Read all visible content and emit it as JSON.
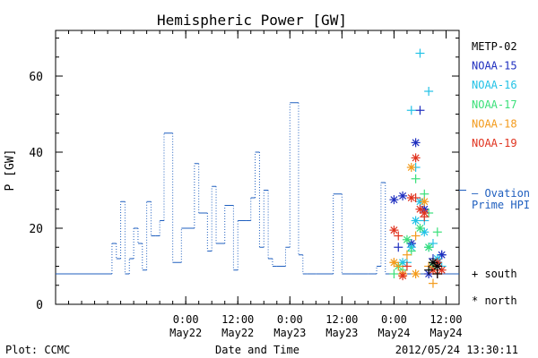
{
  "chart_data": {
    "type": "line",
    "title": "Hemispheric Power [GW]",
    "ylabel": "P [GW]",
    "xlabel": "Date and Time",
    "ylim": [
      0,
      72
    ],
    "xlim": [
      "2012-05-20 18:00",
      "2012-05-24 15:00"
    ],
    "grid": false,
    "y_ticks": [
      0,
      20,
      40,
      60
    ],
    "x_ticks": [
      {
        "time": "2012-05-22 00:00",
        "label": [
          "0:00",
          "May22"
        ]
      },
      {
        "time": "2012-05-22 12:00",
        "label": [
          "12:00",
          "May22"
        ]
      },
      {
        "time": "2012-05-23 00:00",
        "label": [
          "0:00",
          "May23"
        ]
      },
      {
        "time": "2012-05-23 12:00",
        "label": [
          "12:00",
          "May23"
        ]
      },
      {
        "time": "2012-05-24 00:00",
        "label": [
          "0:00",
          "May24"
        ]
      },
      {
        "time": "2012-05-24 12:00",
        "label": [
          "12:00",
          "May24"
        ]
      }
    ],
    "legend": [
      {
        "name": "METP-02",
        "color": "#000000"
      },
      {
        "name": "NOAA-15",
        "color": "#1f2fbf"
      },
      {
        "name": "NOAA-16",
        "color": "#22c2e6"
      },
      {
        "name": "NOAA-17",
        "color": "#3be07a"
      },
      {
        "name": "NOAA-18",
        "color": "#f39b1c"
      },
      {
        "name": "NOAA-19",
        "color": "#e0331f"
      }
    ],
    "ovation": {
      "label": [
        "— Ovation",
        "Prime HPI"
      ],
      "color": "#1f5fbf",
      "level": 30,
      "x": [
        "2012-05-20 18:00",
        "2012-05-21 07:00",
        "2012-05-21 08:00",
        "2012-05-21 09:00",
        "2012-05-21 10:00",
        "2012-05-21 11:00",
        "2012-05-21 12:00",
        "2012-05-21 13:00",
        "2012-05-21 14:00",
        "2012-05-21 15:00",
        "2012-05-21 16:00",
        "2012-05-21 17:00",
        "2012-05-21 18:00",
        "2012-05-21 19:00",
        "2012-05-21 21:00",
        "2012-05-21 23:00",
        "2012-05-22 02:00",
        "2012-05-22 03:00",
        "2012-05-22 05:00",
        "2012-05-22 06:00",
        "2012-05-22 07:00",
        "2012-05-22 09:00",
        "2012-05-22 11:00",
        "2012-05-22 12:00",
        "2012-05-22 14:00",
        "2012-05-22 15:00",
        "2012-05-22 16:00",
        "2012-05-22 17:00",
        "2012-05-22 18:00",
        "2012-05-22 19:00",
        "2012-05-22 20:00",
        "2012-05-22 21:00",
        "2012-05-22 23:00",
        "2012-05-23 00:00",
        "2012-05-23 02:00",
        "2012-05-23 03:00",
        "2012-05-23 04:00",
        "2012-05-23 06:00",
        "2012-05-23 08:00",
        "2012-05-23 10:00",
        "2012-05-23 12:00",
        "2012-05-23 14:00",
        "2012-05-23 18:00",
        "2012-05-23 20:00",
        "2012-05-23 21:00",
        "2012-05-23 22:00",
        "2012-05-24 11:00"
      ],
      "y": [
        8,
        16,
        12,
        27,
        8,
        12,
        20,
        16,
        9,
        27,
        18,
        18,
        22,
        45,
        11,
        20,
        37,
        24,
        14,
        31,
        16,
        26,
        9,
        22,
        22,
        28,
        40,
        15,
        30,
        12,
        10,
        10,
        15,
        53,
        13,
        8,
        8,
        8,
        8,
        29,
        8,
        8,
        8,
        10,
        32,
        8,
        8
      ]
    },
    "series": [
      {
        "name": "NOAA-15",
        "marker": "plus",
        "points": [
          [
            "2012-05-24 01:00",
            15
          ],
          [
            "2012-05-24 04:00",
            16
          ],
          [
            "2012-05-24 06:00",
            51
          ],
          [
            "2012-05-24 07:00",
            25
          ],
          [
            "2012-05-24 09:00",
            12
          ],
          [
            "2012-05-24 11:00",
            13
          ]
        ]
      },
      {
        "name": "NOAA-15",
        "marker": "star",
        "points": [
          [
            "2012-05-24 00:00",
            27.5
          ],
          [
            "2012-05-24 02:00",
            28.5
          ],
          [
            "2012-05-24 04:00",
            16
          ],
          [
            "2012-05-24 05:00",
            42.5
          ],
          [
            "2012-05-24 07:00",
            25
          ],
          [
            "2012-05-24 08:00",
            8
          ],
          [
            "2012-05-24 10:00",
            11
          ],
          [
            "2012-05-24 11:00",
            13
          ]
        ]
      },
      {
        "name": "NOAA-16",
        "marker": "plus",
        "points": [
          [
            "2012-05-24 03:00",
            11
          ],
          [
            "2012-05-24 04:00",
            51
          ],
          [
            "2012-05-24 05:00",
            36
          ],
          [
            "2012-05-24 06:00",
            66
          ],
          [
            "2012-05-24 07:00",
            22
          ],
          [
            "2012-05-24 08:00",
            56
          ],
          [
            "2012-05-24 09:00",
            16
          ],
          [
            "2012-05-24 11:00",
            10
          ]
        ]
      },
      {
        "name": "NOAA-16",
        "marker": "star",
        "points": [
          [
            "2012-05-24 02:00",
            11
          ],
          [
            "2012-05-24 04:00",
            15
          ],
          [
            "2012-05-24 05:00",
            22
          ],
          [
            "2012-05-24 06:00",
            27
          ],
          [
            "2012-05-24 07:00",
            19
          ],
          [
            "2012-05-24 08:00",
            15
          ],
          [
            "2012-05-24 10:00",
            12
          ]
        ]
      },
      {
        "name": "NOAA-17",
        "marker": "plus",
        "points": [
          [
            "2012-05-24 00:00",
            8
          ],
          [
            "2012-05-24 02:00",
            9
          ],
          [
            "2012-05-24 04:00",
            14
          ],
          [
            "2012-05-24 05:00",
            33
          ],
          [
            "2012-05-24 07:00",
            29
          ],
          [
            "2012-05-24 08:00",
            24
          ],
          [
            "2012-05-24 10:00",
            19
          ]
        ]
      },
      {
        "name": "NOAA-17",
        "marker": "star",
        "points": [
          [
            "2012-05-24 01:00",
            10
          ],
          [
            "2012-05-24 03:00",
            17
          ],
          [
            "2012-05-24 06:00",
            20
          ],
          [
            "2012-05-24 08:00",
            15
          ],
          [
            "2012-05-24 09:00",
            10
          ]
        ]
      },
      {
        "name": "NOAA-18",
        "marker": "plus",
        "points": [
          [
            "2012-05-24 00:00",
            11
          ],
          [
            "2012-05-24 01:00",
            10
          ],
          [
            "2012-05-24 03:00",
            13
          ],
          [
            "2012-05-24 05:00",
            18
          ],
          [
            "2012-05-24 08:00",
            10
          ],
          [
            "2012-05-24 09:00",
            5.5
          ]
        ]
      },
      {
        "name": "NOAA-18",
        "marker": "star",
        "points": [
          [
            "2012-05-24 00:00",
            11
          ],
          [
            "2012-05-24 02:00",
            8
          ],
          [
            "2012-05-24 04:00",
            36
          ],
          [
            "2012-05-24 05:00",
            8
          ],
          [
            "2012-05-24 07:00",
            27
          ],
          [
            "2012-05-24 09:00",
            9
          ]
        ]
      },
      {
        "name": "NOAA-19",
        "marker": "plus",
        "points": [
          [
            "2012-05-24 01:00",
            18
          ],
          [
            "2012-05-24 03:00",
            10
          ],
          [
            "2012-05-24 05:00",
            28
          ],
          [
            "2012-05-24 07:00",
            23
          ],
          [
            "2012-05-24 10:00",
            8
          ]
        ]
      },
      {
        "name": "NOAA-19",
        "marker": "star",
        "points": [
          [
            "2012-05-24 00:00",
            19.5
          ],
          [
            "2012-05-24 02:00",
            7.5
          ],
          [
            "2012-05-24 04:00",
            28
          ],
          [
            "2012-05-24 05:00",
            38.5
          ],
          [
            "2012-05-24 06:00",
            25
          ],
          [
            "2012-05-24 07:00",
            24
          ],
          [
            "2012-05-24 09:00",
            9
          ],
          [
            "2012-05-24 10:00",
            11
          ],
          [
            "2012-05-24 11:00",
            9
          ]
        ]
      },
      {
        "name": "METP-02",
        "marker": "plus",
        "points": [
          [
            "2012-05-24 08:00",
            9
          ],
          [
            "2012-05-24 10:00",
            8
          ]
        ]
      },
      {
        "name": "METP-02",
        "marker": "star",
        "points": [
          [
            "2012-05-24 09:00",
            11
          ],
          [
            "2012-05-24 10:00",
            10
          ]
        ]
      }
    ],
    "marker_key": [
      {
        "symbol": "+",
        "label": "south"
      },
      {
        "symbol": "*",
        "label": "north"
      }
    ]
  },
  "footer": {
    "plot_label": "Plot: CCMC",
    "timestamp": "2012/05/24 13:30:11"
  }
}
